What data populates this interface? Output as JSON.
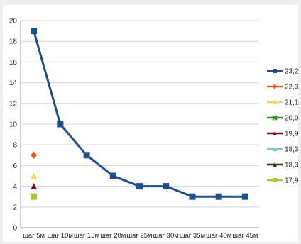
{
  "chart_data": {
    "type": "line",
    "title": "",
    "xlabel": "",
    "ylabel": "",
    "categories": [
      "шаг 5м",
      "шаг 10м",
      "шаг 15м",
      "шаг 20м",
      "шаг 25м",
      "шаг 30м",
      "шаг 35м",
      "шаг 40м",
      "шаг 45м"
    ],
    "ylim": [
      0,
      20
    ],
    "yticks": [
      0,
      2,
      4,
      6,
      8,
      10,
      12,
      14,
      16,
      18,
      20
    ],
    "grid": "horizontal",
    "legend": "right",
    "series": [
      {
        "name": "23,26",
        "color": "#1f4e8c",
        "marker": "square",
        "values": [
          19,
          10,
          7,
          5,
          4,
          4,
          3,
          3,
          3
        ]
      },
      {
        "name": "22,34",
        "color": "#e05a1e",
        "marker": "diamond",
        "values": [
          7,
          null,
          null,
          null,
          null,
          null,
          null,
          null,
          null
        ]
      },
      {
        "name": "21,15",
        "color": "#f2d466",
        "marker": "triangle",
        "values": [
          5,
          null,
          null,
          null,
          null,
          null,
          null,
          null,
          null
        ]
      },
      {
        "name": "20,06",
        "color": "#3e8a1f",
        "marker": "x",
        "values": [
          null,
          null,
          null,
          null,
          null,
          null,
          null,
          null,
          null
        ]
      },
      {
        "name": "19,92",
        "color": "#6b1420",
        "marker": "triangle",
        "values": [
          4,
          null,
          null,
          null,
          null,
          null,
          null,
          null,
          null
        ]
      },
      {
        "name": "18,38",
        "color": "#7fc4dc",
        "marker": "triangle",
        "values": [
          null,
          null,
          null,
          null,
          null,
          null,
          null,
          null,
          null
        ]
      },
      {
        "name": "18,36",
        "color": "#2b3a14",
        "marker": "triangle",
        "values": [
          null,
          null,
          null,
          null,
          null,
          null,
          null,
          null,
          null
        ]
      },
      {
        "name": "17,98",
        "color": "#a8c83a",
        "marker": "square",
        "values": [
          3,
          null,
          null,
          null,
          null,
          null,
          null,
          null,
          null
        ]
      }
    ]
  }
}
